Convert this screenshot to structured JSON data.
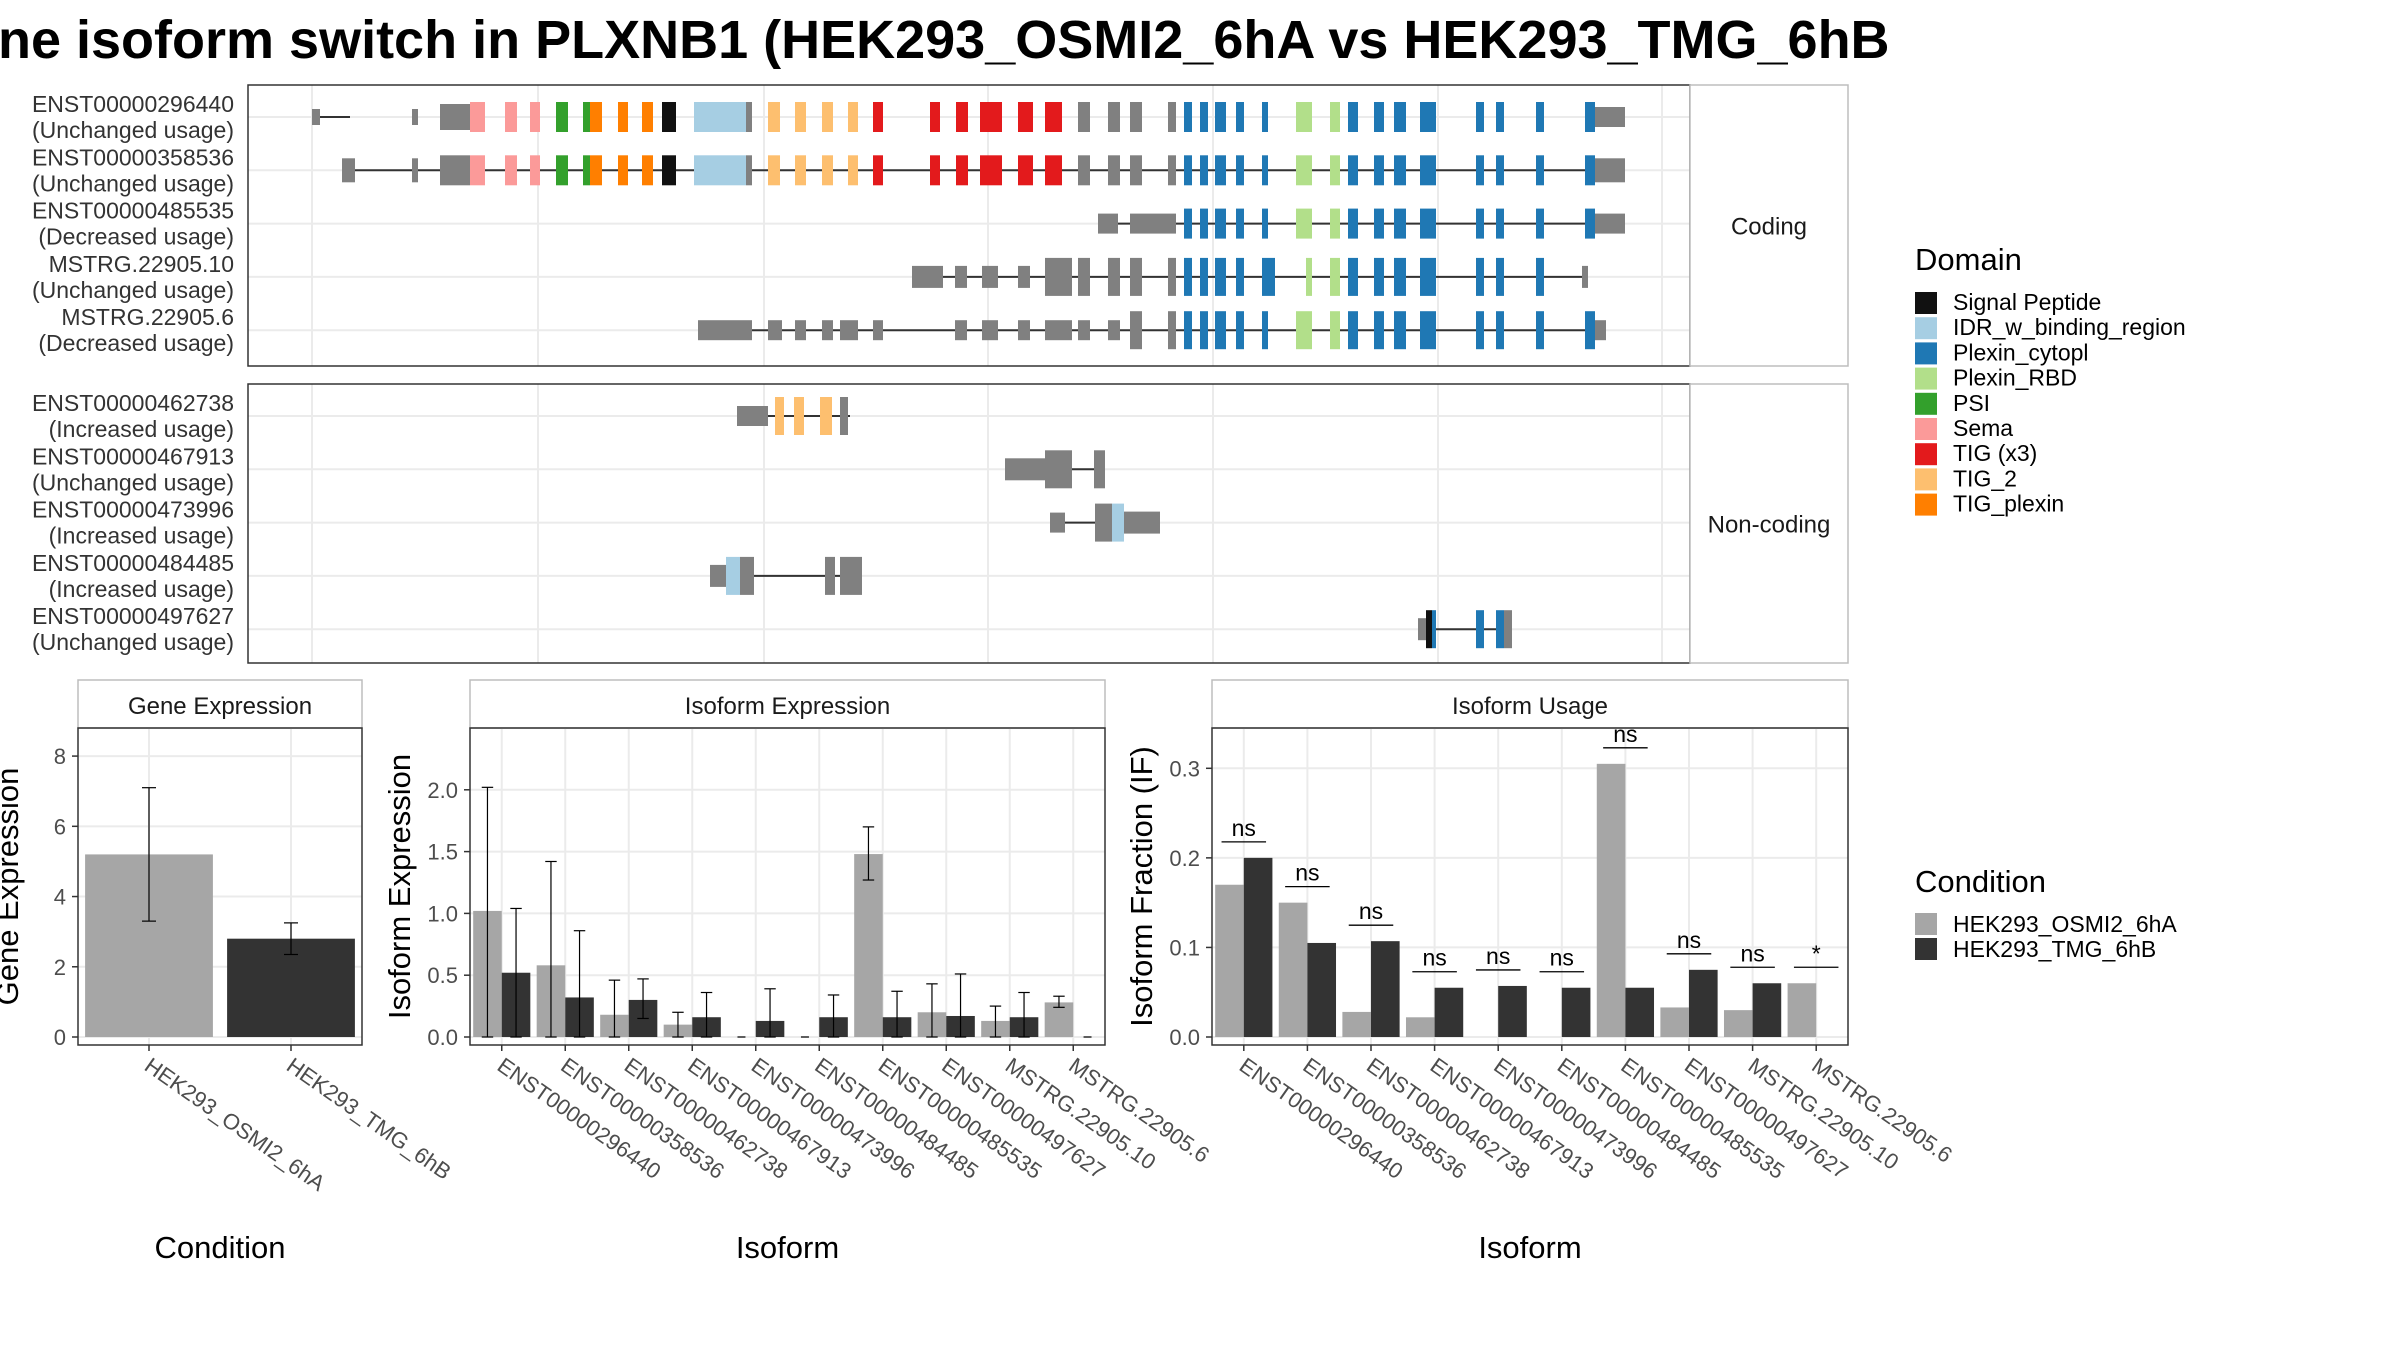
{
  "title": "ne isoform switch in PLXNB1 (HEK293_OSMI2_6hA vs HEK293_TMG_6hB",
  "colors": {
    "cond_a": "#a6a6a6",
    "cond_b": "#333333",
    "utr": "#808080",
    "Signal Peptide": "#111111",
    "IDR_w_binding_region": "#a6cee3",
    "Plexin_cytopl": "#1f78b4",
    "Plexin_RBD": "#b2df8a",
    "PSI": "#33a02c",
    "Sema": "#fb9a99",
    "TIG (x3)": "#e31a1c",
    "TIG_2": "#fdbf6f",
    "TIG_plexin": "#ff7f00"
  },
  "structure": {
    "panels": [
      {
        "strip": "Coding",
        "transcripts": [
          {
            "id": "ENST00000296440",
            "usage": "(Unchanged usage)"
          },
          {
            "id": "ENST00000358536",
            "usage": "(Unchanged usage)"
          },
          {
            "id": "ENST00000485535",
            "usage": "(Decreased usage)"
          },
          {
            "id": "MSTRG.22905.10",
            "usage": "(Unchanged usage)"
          },
          {
            "id": "MSTRG.22905.6",
            "usage": "(Decreased usage)"
          }
        ]
      },
      {
        "strip": "Non-coding",
        "transcripts": [
          {
            "id": "ENST00000462738",
            "usage": "(Increased usage)"
          },
          {
            "id": "ENST00000467913",
            "usage": "(Unchanged usage)"
          },
          {
            "id": "ENST00000473996",
            "usage": "(Increased usage)"
          },
          {
            "id": "ENST00000484485",
            "usage": "(Increased usage)"
          },
          {
            "id": "ENST00000497627",
            "usage": "(Unchanged usage)"
          }
        ]
      }
    ]
  },
  "legends": {
    "domain": {
      "title": "Domain",
      "items": [
        "Signal Peptide",
        "IDR_w_binding_region",
        "Plexin_cytopl",
        "Plexin_RBD",
        "PSI",
        "Sema",
        "TIG (x3)",
        "TIG_2",
        "TIG_plexin"
      ]
    },
    "condition": {
      "title": "Condition",
      "items": [
        "HEK293_OSMI2_6hA",
        "HEK293_TMG_6hB"
      ]
    }
  },
  "chart_data": [
    {
      "type": "bar",
      "strip": "Gene Expression",
      "xlabel": "Condition",
      "ylabel": "Gene Expression",
      "ylim": [
        0,
        8.8
      ],
      "yticks": [
        "0",
        "2",
        "4",
        "6",
        "8"
      ],
      "categories": [
        "HEK293_OSMI2_6hA",
        "HEK293_TMG_6hB"
      ],
      "values": [
        5.2,
        2.8
      ],
      "error": [
        [
          3.3,
          7.1
        ],
        [
          2.35,
          3.25
        ]
      ]
    },
    {
      "type": "bar",
      "strip": "Isoform Expression",
      "xlabel": "Isoform",
      "ylabel": "Isoform Expression",
      "ylim": [
        0,
        2.5
      ],
      "yticks": [
        "0.0",
        "0.5",
        "1.0",
        "1.5",
        "2.0"
      ],
      "categories": [
        "ENST00000296440",
        "ENST00000358536",
        "ENST00000462738",
        "ENST00000467913",
        "ENST00000473996",
        "ENST00000484485",
        "ENST00000485535",
        "ENST00000497627",
        "MSTRG.22905.10",
        "MSTRG.22905.6"
      ],
      "series": [
        {
          "name": "HEK293_OSMI2_6hA",
          "values": [
            1.02,
            0.58,
            0.18,
            0.1,
            0.0,
            0.0,
            1.48,
            0.2,
            0.13,
            0.28
          ],
          "error": [
            [
              0.0,
              2.02
            ],
            [
              0.0,
              1.42
            ],
            [
              0.0,
              0.46
            ],
            [
              0.0,
              0.2
            ],
            null,
            null,
            [
              1.27,
              1.7
            ],
            [
              0.0,
              0.43
            ],
            [
              0.0,
              0.25
            ],
            [
              0.24,
              0.33
            ]
          ]
        },
        {
          "name": "HEK293_TMG_6hB",
          "values": [
            0.52,
            0.32,
            0.3,
            0.16,
            0.13,
            0.16,
            0.16,
            0.17,
            0.16,
            0.0
          ],
          "error": [
            [
              0.0,
              1.04
            ],
            [
              0.0,
              0.86
            ],
            [
              0.15,
              0.47
            ],
            [
              0.0,
              0.36
            ],
            [
              0.0,
              0.39
            ],
            [
              0.0,
              0.34
            ],
            [
              0.0,
              0.37
            ],
            [
              0.0,
              0.51
            ],
            [
              0.0,
              0.36
            ],
            null
          ]
        }
      ]
    },
    {
      "type": "bar",
      "strip": "Isoform Usage",
      "xlabel": "Isoform",
      "ylabel": "Isoform Fraction (IF)",
      "ylim": [
        0,
        0.345
      ],
      "yticks": [
        "0.0",
        "0.1",
        "0.2",
        "0.3"
      ],
      "categories": [
        "ENST00000296440",
        "ENST00000358536",
        "ENST00000462738",
        "ENST00000467913",
        "ENST00000473996",
        "ENST00000484485",
        "ENST00000485535",
        "ENST00000497627",
        "MSTRG.22905.10",
        "MSTRG.22905.6"
      ],
      "series": [
        {
          "name": "HEK293_OSMI2_6hA",
          "values": [
            0.17,
            0.15,
            0.028,
            0.022,
            0.0,
            0.0,
            0.305,
            0.033,
            0.03,
            0.06
          ]
        },
        {
          "name": "HEK293_TMG_6hB",
          "values": [
            0.2,
            0.105,
            0.107,
            0.055,
            0.057,
            0.055,
            0.055,
            0.075,
            0.06,
            0.0
          ]
        }
      ],
      "significance": [
        "ns",
        "ns",
        "ns",
        "ns",
        "ns",
        "ns",
        "ns",
        "ns",
        "ns",
        "*"
      ]
    }
  ]
}
